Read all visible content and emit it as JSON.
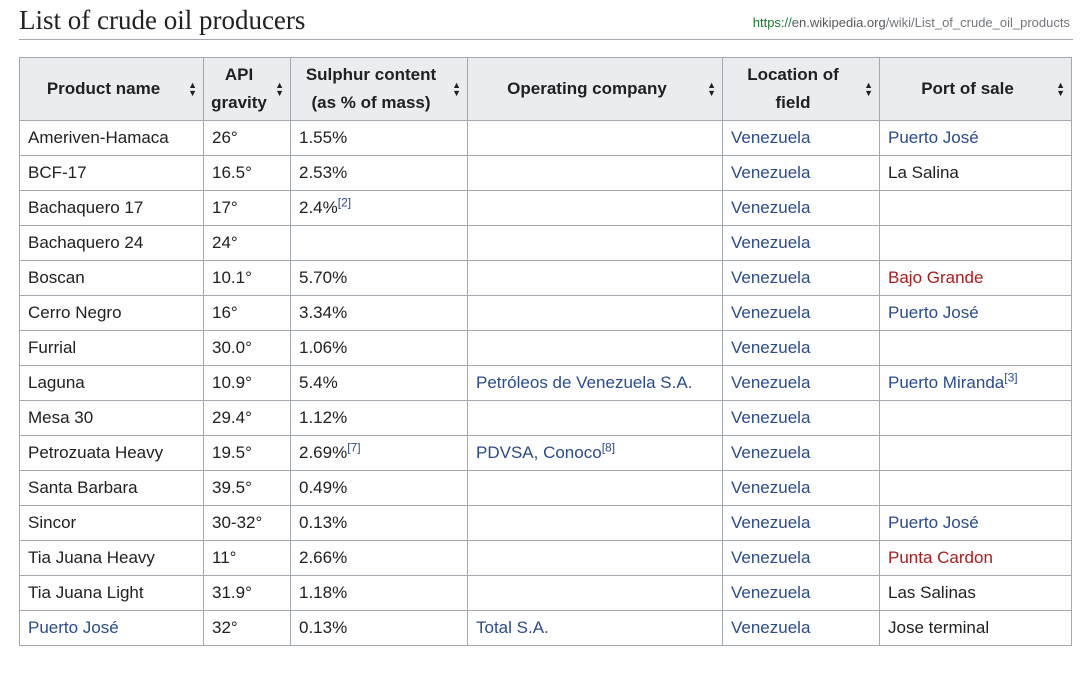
{
  "page": {
    "title": "List of crude oil producers",
    "url_scheme": "https://",
    "url_host": "en.wikipedia.org",
    "url_path": "/wiki/List_of_crude_oil_products"
  },
  "colors": {
    "link": "#2a4b8d",
    "redlink": "#a91d1d",
    "header_bg": "#eaecf0",
    "border": "#a2a9b1"
  },
  "table": {
    "headers": [
      {
        "line1": "Product name",
        "line2": ""
      },
      {
        "line1": "API",
        "line2": "gravity"
      },
      {
        "line1": "Sulphur content",
        "line2": "(as % of mass)"
      },
      {
        "line1": "Operating company",
        "line2": ""
      },
      {
        "line1": "Location of",
        "line2": "field"
      },
      {
        "line1": "Port of sale",
        "line2": ""
      }
    ],
    "sort_icon": "sort-arrows-icon",
    "rows": [
      {
        "product": {
          "text": "Ameriven-Hamaca",
          "style": "plain"
        },
        "api": "26°",
        "sulphur": "1.55%",
        "sulphur_ref": "",
        "company": {
          "text": "",
          "ref": ""
        },
        "location": "Venezuela",
        "port": {
          "text": "Puerto José",
          "style": "link",
          "ref": ""
        }
      },
      {
        "product": {
          "text": "BCF-17",
          "style": "plain"
        },
        "api": "16.5°",
        "sulphur": "2.53%",
        "sulphur_ref": "",
        "company": {
          "text": "",
          "ref": ""
        },
        "location": "Venezuela",
        "port": {
          "text": "La Salina",
          "style": "plain",
          "ref": ""
        }
      },
      {
        "product": {
          "text": "Bachaquero 17",
          "style": "plain"
        },
        "api": "17°",
        "sulphur": "2.4%",
        "sulphur_ref": "[2]",
        "company": {
          "text": "",
          "ref": ""
        },
        "location": "Venezuela",
        "port": {
          "text": "",
          "style": "plain",
          "ref": ""
        }
      },
      {
        "product": {
          "text": "Bachaquero 24",
          "style": "plain"
        },
        "api": "24°",
        "sulphur": "",
        "sulphur_ref": "",
        "company": {
          "text": "",
          "ref": ""
        },
        "location": "Venezuela",
        "port": {
          "text": "",
          "style": "plain",
          "ref": ""
        }
      },
      {
        "product": {
          "text": "Boscan",
          "style": "plain"
        },
        "api": "10.1°",
        "sulphur": "5.70%",
        "sulphur_ref": "",
        "company": {
          "text": "",
          "ref": ""
        },
        "location": "Venezuela",
        "port": {
          "text": "Bajo Grande",
          "style": "red",
          "ref": ""
        }
      },
      {
        "product": {
          "text": "Cerro Negro",
          "style": "plain"
        },
        "api": "16°",
        "sulphur": "3.34%",
        "sulphur_ref": "",
        "company": {
          "text": "",
          "ref": ""
        },
        "location": "Venezuela",
        "port": {
          "text": "Puerto José",
          "style": "link",
          "ref": ""
        }
      },
      {
        "product": {
          "text": "Furrial",
          "style": "plain"
        },
        "api": "30.0°",
        "sulphur": "1.06%",
        "sulphur_ref": "",
        "company": {
          "text": "",
          "ref": ""
        },
        "location": "Venezuela",
        "port": {
          "text": "",
          "style": "plain",
          "ref": ""
        }
      },
      {
        "product": {
          "text": "Laguna",
          "style": "plain"
        },
        "api": "10.9°",
        "sulphur": "5.4%",
        "sulphur_ref": "",
        "company": {
          "text": "Petróleos de Venezuela S.A.",
          "ref": ""
        },
        "location": "Venezuela",
        "port": {
          "text": "Puerto Miranda",
          "style": "link",
          "ref": "[3]"
        }
      },
      {
        "product": {
          "text": "Mesa 30",
          "style": "plain"
        },
        "api": "29.4°",
        "sulphur": "1.12%",
        "sulphur_ref": "",
        "company": {
          "text": "",
          "ref": ""
        },
        "location": "Venezuela",
        "port": {
          "text": "",
          "style": "plain",
          "ref": ""
        }
      },
      {
        "product": {
          "text": "Petrozuata Heavy",
          "style": "plain"
        },
        "api": "19.5°",
        "sulphur": "2.69%",
        "sulphur_ref": "[7]",
        "company": {
          "text": "PDVSA, Conoco",
          "ref": "[8]"
        },
        "location": "Venezuela",
        "port": {
          "text": "",
          "style": "plain",
          "ref": ""
        }
      },
      {
        "product": {
          "text": "Santa Barbara",
          "style": "plain"
        },
        "api": "39.5°",
        "sulphur": "0.49%",
        "sulphur_ref": "",
        "company": {
          "text": "",
          "ref": ""
        },
        "location": "Venezuela",
        "port": {
          "text": "",
          "style": "plain",
          "ref": ""
        }
      },
      {
        "product": {
          "text": "Sincor",
          "style": "plain"
        },
        "api": "30-32°",
        "sulphur": "0.13%",
        "sulphur_ref": "",
        "company": {
          "text": "",
          "ref": ""
        },
        "location": "Venezuela",
        "port": {
          "text": "Puerto José",
          "style": "link",
          "ref": ""
        }
      },
      {
        "product": {
          "text": "Tia Juana Heavy",
          "style": "plain"
        },
        "api": "11°",
        "sulphur": "2.66%",
        "sulphur_ref": "",
        "company": {
          "text": "",
          "ref": ""
        },
        "location": "Venezuela",
        "port": {
          "text": "Punta Cardon",
          "style": "red",
          "ref": ""
        }
      },
      {
        "product": {
          "text": "Tia Juana Light",
          "style": "plain"
        },
        "api": "31.9°",
        "sulphur": "1.18%",
        "sulphur_ref": "",
        "company": {
          "text": "",
          "ref": ""
        },
        "location": "Venezuela",
        "port": {
          "text": "Las Salinas",
          "style": "plain",
          "ref": ""
        }
      },
      {
        "product": {
          "text": "Puerto José",
          "style": "link"
        },
        "api": "32°",
        "sulphur": "0.13%",
        "sulphur_ref": "",
        "company": {
          "text": "Total S.A.",
          "ref": ""
        },
        "location": "Venezuela",
        "port": {
          "text": "Jose terminal",
          "style": "plain",
          "ref": ""
        }
      }
    ]
  }
}
